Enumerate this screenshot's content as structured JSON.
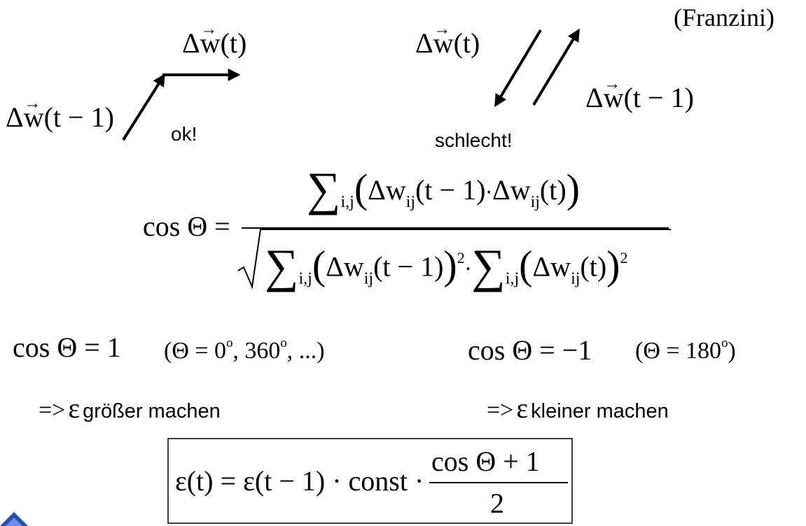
{
  "header": {
    "author": "(Franzini)"
  },
  "left_case": {
    "label": "ok!",
    "vec_symbol": "Δw",
    "vec_arrow": "→",
    "arg_current": "(t)",
    "arg_prev": "(t − 1)"
  },
  "right_case": {
    "label": "schlecht!",
    "vec_symbol": "Δw",
    "vec_arrow": "→",
    "arg_current": "(t)",
    "arg_prev": "(t − 1)"
  },
  "formula": {
    "lhs": "cos Θ =",
    "sum": "∑",
    "sum_idx": "i,j",
    "open": "(",
    "close": ")",
    "dw": "Δw",
    "ij": "ij",
    "arg_prev": "(t − 1)",
    "arg_cur": "(t)",
    "dot": "·",
    "square": "2",
    "sqrt": "√"
  },
  "cases": {
    "left_eq": "cos Θ = 1",
    "left_cond": "(Θ = 0",
    "left_deg1": "o",
    "left_mid": ", 360",
    "left_deg2": "o",
    "left_tail": ", ...)",
    "right_eq": "cos Θ = −1",
    "right_cond": "(Θ = 180",
    "right_deg": "o",
    "right_close": ")"
  },
  "rules": {
    "implies": "=>",
    "epsilon": "ε",
    "left_text": "größer machen",
    "right_text": "kleiner machen"
  },
  "update": {
    "lhs": "ε(t) = ε(t − 1) · const ·",
    "numerator": "cos Θ + 1",
    "denominator": "2"
  }
}
